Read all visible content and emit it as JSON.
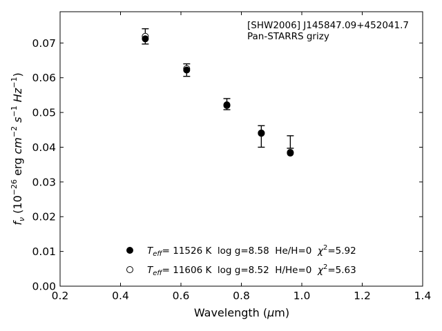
{
  "chart_data": {
    "type": "scatter",
    "title": "",
    "xlabel": "Wavelength (μm)",
    "ylabel": "fν (10⁻²⁶ erg cm⁻² s⁻¹ Hz⁻¹)",
    "xlim": [
      0.2,
      1.4
    ],
    "ylim": [
      0.0,
      0.079
    ],
    "xticks": [
      "0.2",
      "0.4",
      "0.6",
      "0.8",
      "1.0",
      "1.2",
      "1.4"
    ],
    "yticks": [
      "0.00",
      "0.01",
      "0.02",
      "0.03",
      "0.04",
      "0.05",
      "0.06",
      "0.07"
    ],
    "grid": false,
    "annotation": {
      "line1": "[SHW2006] J145847.09+452041.7",
      "line2": "Pan-STARRS grizy"
    },
    "observed": {
      "x": [
        0.482,
        0.619,
        0.752,
        0.866,
        0.962
      ],
      "y": [
        0.0719,
        0.0622,
        0.0524,
        0.0431,
        0.0415
      ],
      "yerr": [
        0.0022,
        0.0018,
        0.0016,
        0.0031,
        0.0018
      ]
    },
    "series": [
      {
        "name": "T_eff= 11526 K  log g=8.58  He/H=0  χ²=5.92",
        "marker": "filled",
        "x": [
          0.482,
          0.619,
          0.752,
          0.866,
          0.962
        ],
        "y": [
          0.0712,
          0.0622,
          0.0522,
          0.044,
          0.0383
        ]
      },
      {
        "name": "T_eff= 11606 K  log g=8.52  H/He=0  χ²=5.63",
        "marker": "open",
        "x": [
          0.482,
          0.619,
          0.752,
          0.866,
          0.962
        ],
        "y": [
          0.0719,
          0.0626,
          0.052,
          0.0441,
          0.0385
        ]
      }
    ],
    "legend": {
      "placement": "lower-center",
      "entries": [
        {
          "teff_label": "T",
          "teff_sub": "eff",
          "text": "= 11526 K  log g=8.58  He/H=0  ",
          "chi": "χ",
          "chi_sup": "2",
          "chi_val": "=5.92"
        },
        {
          "teff_label": "T",
          "teff_sub": "eff",
          "text": "= 11606 K  log g=8.52  H/He=0  ",
          "chi": "χ",
          "chi_sup": "2",
          "chi_val": "=5.63"
        }
      ]
    },
    "axis_text": {
      "x_main": "Wavelength (",
      "x_mu": "μ",
      "x_unit": "m)",
      "y_f": "f",
      "y_nu": "ν",
      "y_open": " (10",
      "y_exp1": "−26",
      "y_erg": " erg ",
      "y_cm": "cm",
      "y_exp2": "−2",
      "y_s": " s",
      "y_exp3": "−1",
      "y_hz": " Hz",
      "y_exp4": "−1",
      "y_close": ")"
    }
  }
}
